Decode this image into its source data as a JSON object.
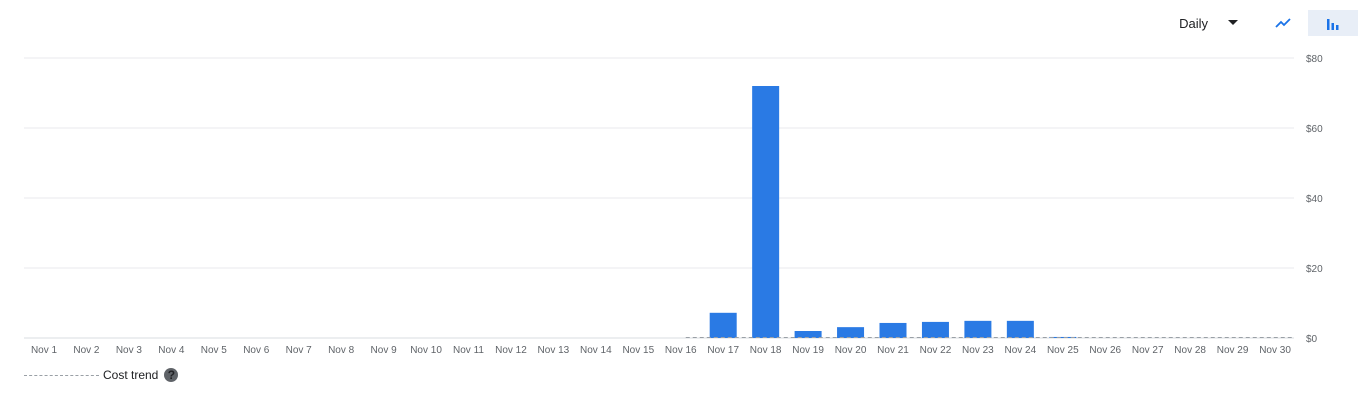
{
  "toolbar": {
    "granularity_label": "Daily",
    "line_view_icon": "trend-line-icon",
    "bar_view_icon": "bar-chart-icon",
    "selected_view": "bar"
  },
  "legend": {
    "trend_label": "Cost trend",
    "help_icon": "help-circle-icon",
    "help_glyph": "?"
  },
  "colors": {
    "bar": "#2a7ae4",
    "grid": "#e8eaed",
    "trend": "#9aa0a6",
    "accent": "#1a73e8"
  },
  "chart_data": {
    "type": "bar",
    "categories": [
      "Nov 1",
      "Nov 2",
      "Nov 3",
      "Nov 4",
      "Nov 5",
      "Nov 6",
      "Nov 7",
      "Nov 8",
      "Nov 9",
      "Nov 10",
      "Nov 11",
      "Nov 12",
      "Nov 13",
      "Nov 14",
      "Nov 15",
      "Nov 16",
      "Nov 17",
      "Nov 18",
      "Nov 19",
      "Nov 20",
      "Nov 21",
      "Nov 22",
      "Nov 23",
      "Nov 24",
      "Nov 25",
      "Nov 26",
      "Nov 27",
      "Nov 28",
      "Nov 29",
      "Nov 30"
    ],
    "values": [
      0,
      0,
      0,
      0,
      0,
      0,
      0,
      0,
      0,
      0,
      0,
      0,
      0,
      0,
      0,
      0,
      7.2,
      72,
      2.0,
      3.1,
      4.3,
      4.6,
      4.9,
      4.9,
      0.3,
      0,
      0,
      0,
      0,
      0
    ],
    "ylim": [
      0,
      80
    ],
    "yticks": [
      0,
      20,
      40,
      60,
      80
    ],
    "ytick_labels": [
      "$0",
      "$20",
      "$40",
      "$60",
      "$80"
    ],
    "trend_line": {
      "name": "Cost trend",
      "start_index": 15
    },
    "grid": true,
    "y_axis_side": "right"
  }
}
